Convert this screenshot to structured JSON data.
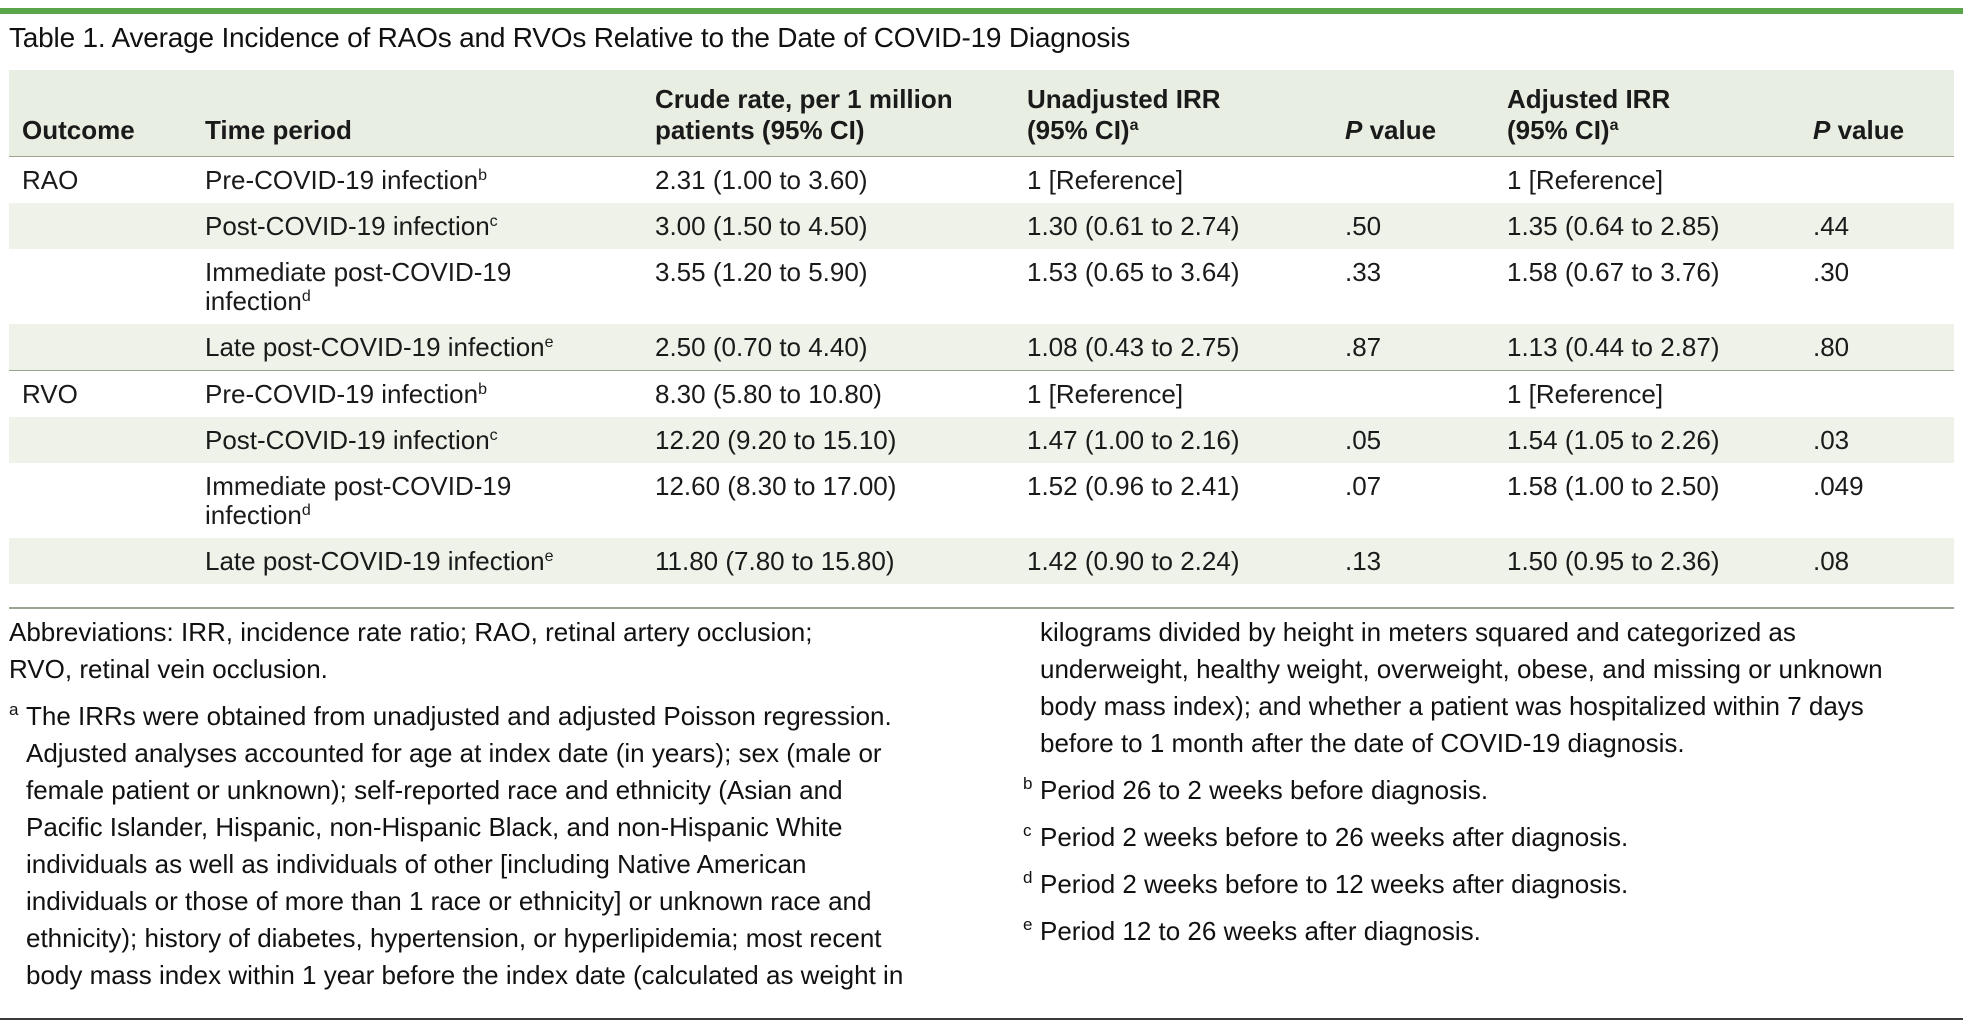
{
  "title": "Table 1. Average Incidence of RAOs and RVOs Relative to the Date of COVID-19 Diagnosis",
  "colors": {
    "accent_rule": "#5aa44a",
    "header_bg": "#e9eee3",
    "stripe_bg": "#eef2e9"
  },
  "table": {
    "headers": {
      "outcome": "Outcome",
      "time_period": "Time period",
      "crude_rate_line1": "Crude rate, per 1 million",
      "crude_rate_line2": "patients (95% CI)",
      "unadj_line1": "Unadjusted IRR",
      "unadj_line2": "(95% CI)",
      "unadj_sup": "a",
      "p_value_italic": "P",
      "p_value_rest": " value",
      "adj_line1": "Adjusted IRR",
      "adj_line2": "(95% CI)",
      "adj_sup": "a"
    },
    "rows": [
      {
        "outcome": "RAO",
        "period": "Pre-COVID-19 infection",
        "sup": "b",
        "crude": "2.31 (1.00 to 3.60)",
        "unadj": "1 [Reference]",
        "p1": "",
        "adj": "1 [Reference]",
        "p2": ""
      },
      {
        "outcome": "",
        "period": "Post-COVID-19 infection",
        "sup": "c",
        "crude": "3.00 (1.50 to 4.50)",
        "unadj": "1.30 (0.61 to 2.74)",
        "p1": ".50",
        "adj": "1.35 (0.64 to 2.85)",
        "p2": ".44"
      },
      {
        "outcome": "",
        "period_line1": "Immediate post-COVID-19",
        "period_line2": "infection",
        "sup": "d",
        "crude": "3.55 (1.20 to 5.90)",
        "unadj": "1.53 (0.65 to 3.64)",
        "p1": ".33",
        "adj": "1.58 (0.67 to 3.76)",
        "p2": ".30"
      },
      {
        "outcome": "",
        "period": "Late post-COVID-19 infection",
        "sup": "e",
        "crude": "2.50 (0.70 to 4.40)",
        "unadj": "1.08 (0.43 to 2.75)",
        "p1": ".87",
        "adj": "1.13 (0.44 to 2.87)",
        "p2": ".80"
      },
      {
        "outcome": "RVO",
        "period": "Pre-COVID-19 infection",
        "sup": "b",
        "crude": "8.30 (5.80 to 10.80)",
        "unadj": "1 [Reference]",
        "p1": "",
        "adj": "1 [Reference]",
        "p2": ""
      },
      {
        "outcome": "",
        "period": "Post-COVID-19 infection",
        "sup": "c",
        "crude": "12.20 (9.20 to 15.10)",
        "unadj": "1.47 (1.00 to 2.16)",
        "p1": ".05",
        "adj": "1.54 (1.05 to 2.26)",
        "p2": ".03"
      },
      {
        "outcome": "",
        "period_line1": "Immediate post-COVID-19",
        "period_line2": "infection",
        "sup": "d",
        "crude": "12.60 (8.30 to 17.00)",
        "unadj": "1.52 (0.96 to 2.41)",
        "p1": ".07",
        "adj": "1.58 (1.00 to 2.50)",
        "p2": ".049"
      },
      {
        "outcome": "",
        "period": "Late post-COVID-19 infection",
        "sup": "e",
        "crude": "11.80 (7.80 to 15.80)",
        "unadj": "1.42 (0.90 to 2.24)",
        "p1": ".13",
        "adj": "1.50 (0.95 to 2.36)",
        "p2": ".08"
      }
    ]
  },
  "notes": {
    "abbreviations_line1": "Abbreviations: IRR, incidence rate ratio; RAO, retinal artery occlusion;",
    "abbreviations_line2": "RVO, retinal vein occlusion.",
    "footnote_a_mark": "a",
    "footnote_a_lines": [
      "The IRRs were obtained from unadjusted and adjusted Poisson regression.",
      "Adjusted analyses accounted for age at index date (in years); sex (male or",
      "female patient or unknown); self-reported race and ethnicity (Asian and",
      "Pacific Islander, Hispanic, non-Hispanic Black, and non-Hispanic White",
      "individuals as well as individuals of other [including Native American",
      "individuals or those of more than 1 race or ethnicity] or unknown race and",
      "ethnicity); history of diabetes, hypertension, or hyperlipidemia; most recent",
      "body mass index within 1 year before the index date (calculated as weight in"
    ],
    "footnote_a_continued_lines": [
      "kilograms divided by height in meters squared and categorized as",
      "underweight, healthy weight, overweight, obese, and missing or unknown",
      "body mass index); and whether a patient was hospitalized within 7 days",
      "before to 1 month after the date of COVID-19 diagnosis."
    ],
    "footnote_b_mark": "b",
    "footnote_b": "Period 26 to 2 weeks before diagnosis.",
    "footnote_c_mark": "c",
    "footnote_c": "Period 2 weeks before to 26 weeks after diagnosis.",
    "footnote_d_mark": "d",
    "footnote_d": "Period 2 weeks before to 12 weeks after diagnosis.",
    "footnote_e_mark": "e",
    "footnote_e": "Period 12 to 26 weeks after diagnosis."
  }
}
